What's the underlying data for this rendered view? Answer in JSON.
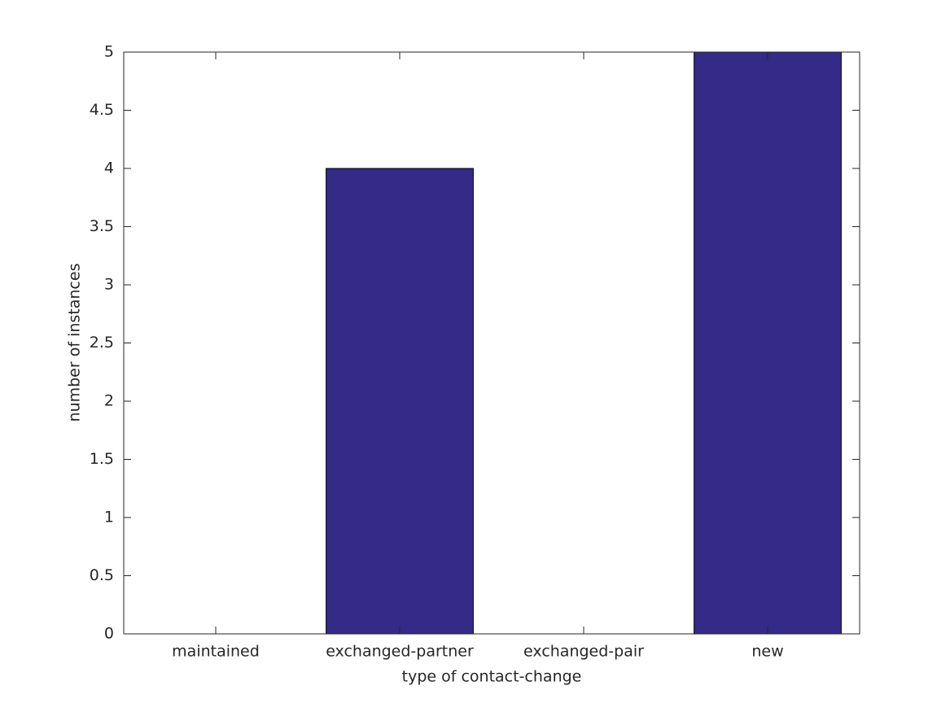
{
  "chart_data": {
    "type": "bar",
    "categories": [
      "maintained",
      "exchanged-partner",
      "exchanged-pair",
      "new"
    ],
    "values": [
      0,
      4,
      0,
      5
    ],
    "color": "#352a87",
    "xlabel": "type of contact-change",
    "ylabel": "number of instances",
    "ylim": [
      0,
      5
    ],
    "yticks": [
      0,
      0.5,
      1,
      1.5,
      2,
      2.5,
      3,
      3.5,
      4,
      4.5,
      5
    ],
    "grid": false
  }
}
